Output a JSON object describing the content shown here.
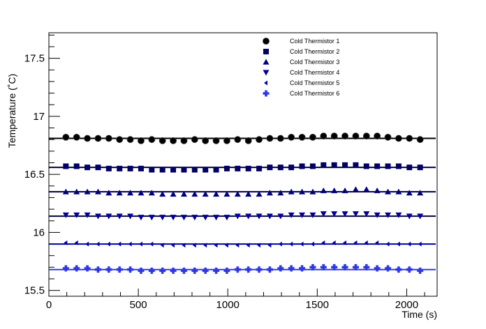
{
  "chart_data": {
    "type": "scatter",
    "title": "",
    "xlabel": "Time (s)",
    "ylabel": "Temperature (˚C)",
    "xlim": [
      0,
      2170
    ],
    "ylim": [
      15.45,
      17.72
    ],
    "x_ticks": [
      "0",
      "500",
      "1000",
      "1500",
      "2000"
    ],
    "y_ticks": [
      "15.5",
      "16",
      "16.5",
      "17",
      "17.5"
    ],
    "x_tick_values": [
      0,
      500,
      1000,
      1500,
      2000
    ],
    "y_tick_values": [
      15.5,
      16.0,
      16.5,
      17.0,
      17.5
    ],
    "legend_position": "top-right",
    "x": [
      95,
      155,
      215,
      275,
      335,
      395,
      455,
      515,
      575,
      635,
      695,
      755,
      815,
      875,
      935,
      995,
      1055,
      1115,
      1175,
      1235,
      1295,
      1355,
      1415,
      1475,
      1535,
      1595,
      1655,
      1715,
      1775,
      1835,
      1895,
      1955,
      2015,
      2075
    ],
    "series": [
      {
        "name": "Cold Thermistor 1",
        "marker": "circle",
        "color": "#000000",
        "fit": 16.81,
        "fit_color": "#000000",
        "values": [
          16.82,
          16.82,
          16.81,
          16.81,
          16.81,
          16.8,
          16.8,
          16.79,
          16.8,
          16.79,
          16.79,
          16.79,
          16.8,
          16.79,
          16.79,
          16.79,
          16.8,
          16.79,
          16.8,
          16.81,
          16.81,
          16.82,
          16.82,
          16.82,
          16.83,
          16.83,
          16.83,
          16.83,
          16.83,
          16.83,
          16.82,
          16.81,
          16.81,
          16.8
        ]
      },
      {
        "name": "Cold Thermistor 2",
        "marker": "square",
        "color": "#000066",
        "fit": 16.56,
        "fit_color": "#000033",
        "values": [
          16.57,
          16.57,
          16.56,
          16.56,
          16.55,
          16.55,
          16.55,
          16.55,
          16.54,
          16.54,
          16.54,
          16.54,
          16.54,
          16.54,
          16.54,
          16.55,
          16.55,
          16.55,
          16.55,
          16.56,
          16.56,
          16.56,
          16.57,
          16.57,
          16.58,
          16.58,
          16.58,
          16.58,
          16.57,
          16.57,
          16.57,
          16.57,
          16.56,
          16.56
        ]
      },
      {
        "name": "Cold Thermistor 3",
        "marker": "triangle-up",
        "color": "#000080",
        "fit": 16.35,
        "fit_color": "#000040",
        "values": [
          16.35,
          16.35,
          16.35,
          16.35,
          16.34,
          16.34,
          16.34,
          16.34,
          16.34,
          16.33,
          16.33,
          16.33,
          16.33,
          16.33,
          16.33,
          16.33,
          16.33,
          16.33,
          16.33,
          16.34,
          16.34,
          16.35,
          16.35,
          16.35,
          16.36,
          16.36,
          16.36,
          16.37,
          16.37,
          16.36,
          16.35,
          16.35,
          16.34,
          16.34
        ]
      },
      {
        "name": "Cold Thermistor 4",
        "marker": "triangle-down",
        "color": "#000099",
        "fit": 16.14,
        "fit_color": "#000040",
        "values": [
          16.15,
          16.15,
          16.15,
          16.14,
          16.14,
          16.14,
          16.14,
          16.13,
          16.13,
          16.13,
          16.13,
          16.13,
          16.13,
          16.13,
          16.13,
          16.13,
          16.14,
          16.14,
          16.14,
          16.14,
          16.14,
          16.15,
          16.15,
          16.15,
          16.16,
          16.16,
          16.16,
          16.16,
          16.16,
          16.15,
          16.15,
          16.15,
          16.14,
          16.14
        ]
      },
      {
        "name": "Cold Thermistor 5",
        "marker": "triangle-left",
        "color": "#0000b3",
        "fit": 15.9,
        "fit_color": "#0000a0",
        "values": [
          15.91,
          15.91,
          15.9,
          15.9,
          15.9,
          15.9,
          15.9,
          15.9,
          15.9,
          15.89,
          15.89,
          15.89,
          15.89,
          15.89,
          15.89,
          15.89,
          15.89,
          15.89,
          15.89,
          15.89,
          15.9,
          15.9,
          15.9,
          15.9,
          15.91,
          15.91,
          15.91,
          15.91,
          15.91,
          15.91,
          15.9,
          15.9,
          15.9,
          15.9
        ]
      },
      {
        "name": "Cold Thermistor 6",
        "marker": "cross",
        "color": "#2e37e6",
        "fit": 15.68,
        "fit_color": "#3a3ae0",
        "values": [
          15.69,
          15.69,
          15.69,
          15.68,
          15.68,
          15.68,
          15.68,
          15.67,
          15.67,
          15.67,
          15.67,
          15.67,
          15.67,
          15.67,
          15.67,
          15.67,
          15.68,
          15.68,
          15.68,
          15.68,
          15.69,
          15.69,
          15.69,
          15.7,
          15.7,
          15.7,
          15.7,
          15.7,
          15.7,
          15.69,
          15.69,
          15.68,
          15.68,
          15.67
        ]
      }
    ]
  }
}
